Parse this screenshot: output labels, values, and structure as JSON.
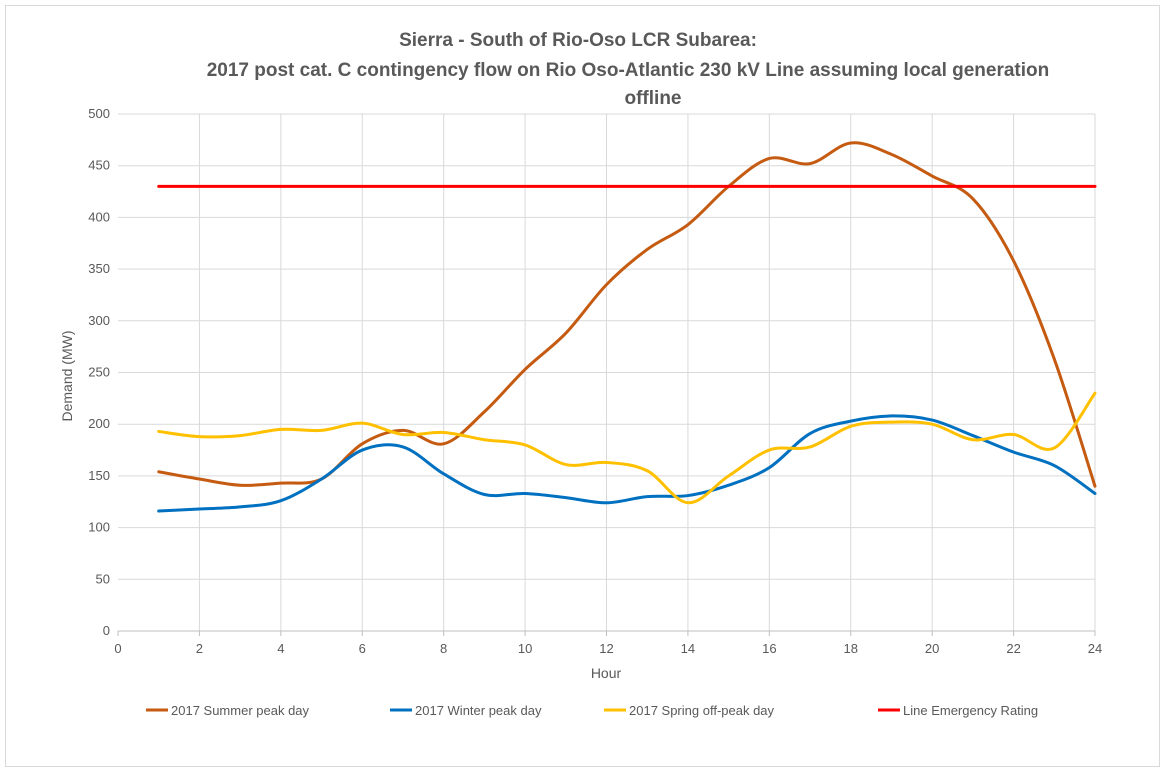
{
  "chart_data": {
    "type": "line",
    "title_lines": [
      "Sierra - South of Rio-Oso LCR Subarea:",
      "2017 post cat. C contingency flow on Rio Oso-Atlantic 230 kV Line assuming local generation",
      "offline"
    ],
    "xlabel": "Hour",
    "ylabel": "Demand (MW)",
    "xlim": [
      0,
      24
    ],
    "ylim": [
      0,
      500
    ],
    "x_ticks": [
      0,
      2,
      4,
      6,
      8,
      10,
      12,
      14,
      16,
      18,
      20,
      22,
      24
    ],
    "y_ticks": [
      0,
      50,
      100,
      150,
      200,
      250,
      300,
      350,
      400,
      450,
      500
    ],
    "grid": true,
    "legend_position": "bottom",
    "x": [
      1,
      2,
      3,
      4,
      5,
      6,
      7,
      8,
      9,
      10,
      11,
      12,
      13,
      14,
      15,
      16,
      17,
      18,
      19,
      20,
      21,
      22,
      23,
      24
    ],
    "series": [
      {
        "name": "2017 Summer peak day",
        "color": "#c55a11",
        "values": [
          154,
          147,
          141,
          143,
          147,
          181,
          194,
          181,
          212,
          253,
          288,
          335,
          369,
          393,
          430,
          457,
          452,
          472,
          461,
          440,
          418,
          358,
          263,
          140
        ]
      },
      {
        "name": "2017 Winter peak day",
        "color": "#0070c0",
        "values": [
          116,
          118,
          120,
          126,
          147,
          175,
          178,
          152,
          132,
          133,
          129,
          124,
          130,
          131,
          141,
          158,
          191,
          203,
          208,
          204,
          189,
          173,
          160,
          133
        ]
      },
      {
        "name": "2017 Spring off-peak day",
        "color": "#ffc000",
        "values": [
          193,
          188,
          189,
          195,
          194,
          201,
          190,
          192,
          185,
          180,
          161,
          163,
          155,
          124,
          150,
          175,
          178,
          198,
          202,
          200,
          185,
          190,
          177,
          230
        ]
      },
      {
        "name": "Line Emergency Rating",
        "color": "#ff0000",
        "values": [
          430,
          430,
          430,
          430,
          430,
          430,
          430,
          430,
          430,
          430,
          430,
          430,
          430,
          430,
          430,
          430,
          430,
          430,
          430,
          430,
          430,
          430,
          430,
          430
        ]
      }
    ]
  }
}
